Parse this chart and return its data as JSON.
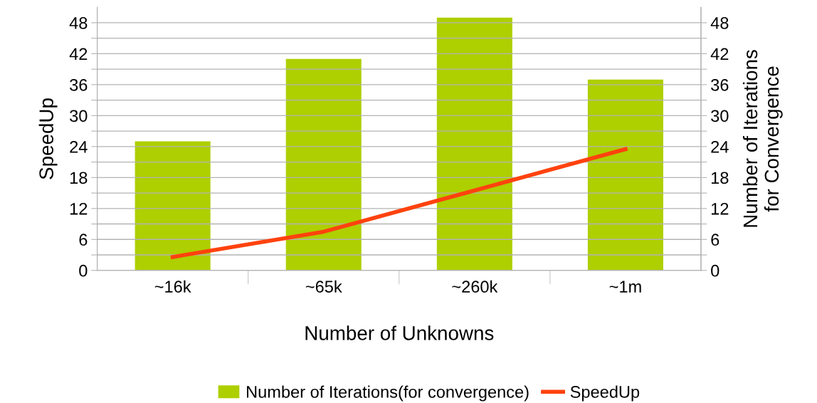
{
  "chart_data": {
    "type": "bar",
    "xlabel": "Number of Unknowns",
    "ylabel": "SpeedUp",
    "y2label": "Number of Iterations\nfor Convergence",
    "categories": [
      "~16k",
      "~65k",
      "~260k",
      "~1m"
    ],
    "series": [
      {
        "name": "Number of Iterations(for convergence)",
        "axis": "y2",
        "color": "#aecf00",
        "values": [
          25,
          41,
          49,
          37
        ]
      },
      {
        "name": "SpeedUp",
        "type": "line",
        "axis": "y",
        "color": "#ff420e",
        "values": [
          2.6,
          7.5,
          15.5,
          23.5
        ]
      }
    ],
    "ylim": [
      0,
      51
    ],
    "y2lim": [
      0,
      51
    ],
    "yticks": [
      0,
      {
        "value": 3,
        "label": null
      },
      6,
      {
        "value": 9,
        "label": null
      },
      12,
      {
        "value": 15,
        "label": null
      },
      18,
      {
        "value": 21,
        "label": null
      },
      24,
      {
        "value": 27,
        "label": null
      },
      30,
      {
        "value": 33,
        "label": null
      },
      36,
      {
        "value": 39,
        "label": null
      },
      42,
      {
        "value": 45,
        "label": null
      },
      48
    ],
    "y2ticks": [
      0,
      {
        "value": 3,
        "label": null
      },
      6,
      {
        "value": 9,
        "label": null
      },
      12,
      {
        "value": 15,
        "label": null
      },
      18,
      {
        "value": 21,
        "label": null
      },
      24,
      {
        "value": 27,
        "label": null
      },
      30,
      {
        "value": 33,
        "label": null
      },
      36,
      {
        "value": 39,
        "label": null
      },
      42,
      {
        "value": 45,
        "label": null
      },
      48
    ],
    "grid": "y",
    "legend": "bottom",
    "marker": "none",
    "line_style": "solid"
  }
}
